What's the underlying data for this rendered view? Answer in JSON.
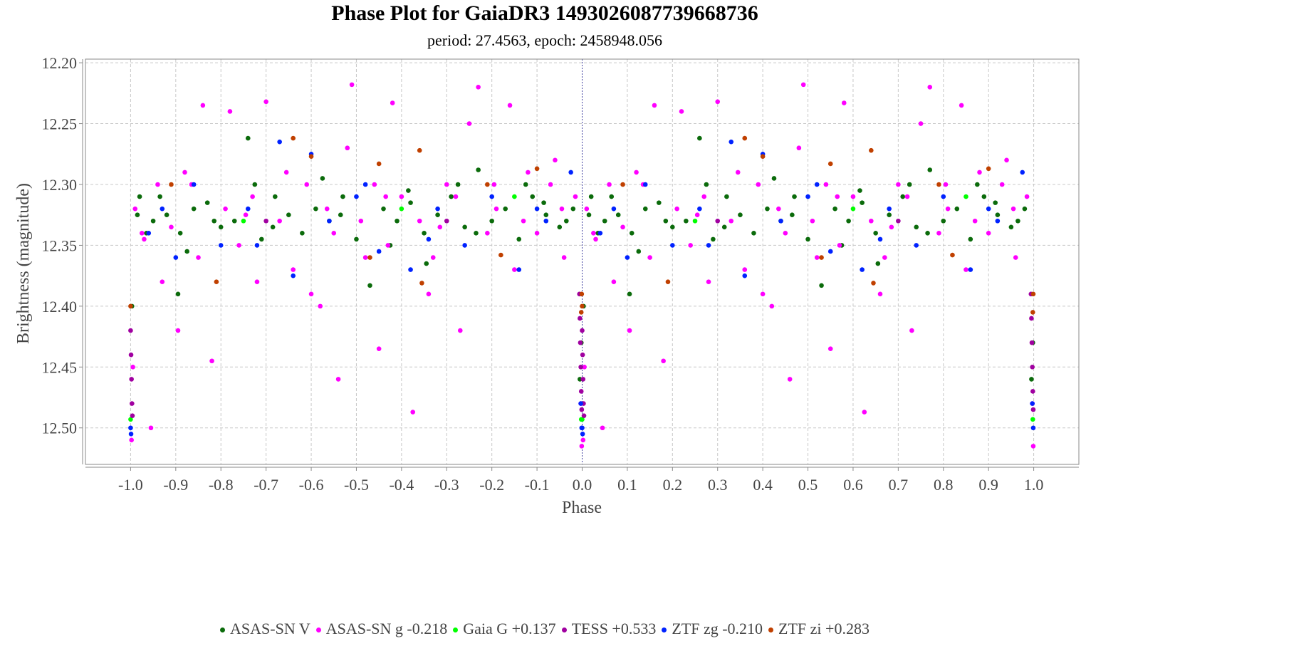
{
  "chart_data": {
    "type": "scatter",
    "title": "Phase Plot for GaiaDR3 1493026087739668736",
    "subtitle": "period: 27.4563, epoch: 2458948.056",
    "xlabel": "Phase",
    "ylabel": "Brightness (magnitude)",
    "xlim": [
      -1.1,
      1.1
    ],
    "ylim": [
      12.197,
      12.53
    ],
    "y_inverted": true,
    "grid": true,
    "legend_position": "bottom",
    "x_ticks": [
      "-1.0",
      "-0.9",
      "-0.8",
      "-0.7",
      "-0.6",
      "-0.5",
      "-0.4",
      "-0.3",
      "-0.2",
      "-0.1",
      "0.0",
      "0.1",
      "0.2",
      "0.3",
      "0.4",
      "0.5",
      "0.6",
      "0.7",
      "0.8",
      "0.9",
      "1.0"
    ],
    "y_ticks": [
      "12.20",
      "12.25",
      "12.30",
      "12.35",
      "12.40",
      "12.45",
      "12.50"
    ],
    "phase_folding": "each point at phase p in [0,1] is also drawn at p-1",
    "series": [
      {
        "name": "ASAS-SN V",
        "color": "#0b6b0b",
        "points": [
          [
            0.02,
            12.31
          ],
          [
            0.05,
            12.33
          ],
          [
            0.08,
            12.325
          ],
          [
            0.11,
            12.34
          ],
          [
            0.14,
            12.32
          ],
          [
            0.17,
            12.315
          ],
          [
            0.2,
            12.335
          ],
          [
            0.23,
            12.33
          ],
          [
            0.26,
            12.262
          ],
          [
            0.29,
            12.345
          ],
          [
            0.32,
            12.31
          ],
          [
            0.35,
            12.325
          ],
          [
            0.38,
            12.34
          ],
          [
            0.41,
            12.32
          ],
          [
            0.44,
            12.33
          ],
          [
            0.47,
            12.31
          ],
          [
            0.5,
            12.345
          ],
          [
            0.53,
            12.383
          ],
          [
            0.56,
            12.32
          ],
          [
            0.59,
            12.33
          ],
          [
            0.62,
            12.315
          ],
          [
            0.65,
            12.34
          ],
          [
            0.68,
            12.325
          ],
          [
            0.71,
            12.31
          ],
          [
            0.74,
            12.335
          ],
          [
            0.77,
            12.288
          ],
          [
            0.8,
            12.33
          ],
          [
            0.83,
            12.32
          ],
          [
            0.86,
            12.345
          ],
          [
            0.89,
            12.31
          ],
          [
            0.92,
            12.325
          ],
          [
            0.95,
            12.335
          ],
          [
            0.98,
            12.32
          ],
          [
            0.995,
            12.46
          ],
          [
            0.998,
            12.43
          ],
          [
            0.003,
            12.4
          ],
          [
            0.035,
            12.34
          ],
          [
            0.125,
            12.355
          ],
          [
            0.275,
            12.3
          ],
          [
            0.425,
            12.295
          ],
          [
            0.575,
            12.35
          ],
          [
            0.725,
            12.3
          ],
          [
            0.875,
            12.3
          ],
          [
            0.655,
            12.365
          ],
          [
            0.105,
            12.39
          ],
          [
            0.015,
            12.325
          ],
          [
            0.065,
            12.31
          ],
          [
            0.185,
            12.33
          ],
          [
            0.315,
            12.335
          ],
          [
            0.465,
            12.325
          ],
          [
            0.615,
            12.305
          ],
          [
            0.765,
            12.34
          ],
          [
            0.915,
            12.315
          ],
          [
            0.965,
            12.33
          ]
        ]
      },
      {
        "name": "ASAS-SN g -0.218",
        "color": "#ff00ff",
        "points": [
          [
            0.01,
            12.32
          ],
          [
            0.03,
            12.345
          ],
          [
            0.045,
            12.5
          ],
          [
            0.06,
            12.3
          ],
          [
            0.09,
            12.335
          ],
          [
            0.12,
            12.29
          ],
          [
            0.15,
            12.36
          ],
          [
            0.16,
            12.235
          ],
          [
            0.18,
            12.445
          ],
          [
            0.21,
            12.32
          ],
          [
            0.22,
            12.24
          ],
          [
            0.24,
            12.35
          ],
          [
            0.27,
            12.31
          ],
          [
            0.3,
            12.232
          ],
          [
            0.33,
            12.33
          ],
          [
            0.36,
            12.37
          ],
          [
            0.39,
            12.3
          ],
          [
            0.42,
            12.4
          ],
          [
            0.45,
            12.34
          ],
          [
            0.46,
            12.46
          ],
          [
            0.48,
            12.27
          ],
          [
            0.49,
            12.218
          ],
          [
            0.51,
            12.33
          ],
          [
            0.54,
            12.3
          ],
          [
            0.55,
            12.435
          ],
          [
            0.57,
            12.35
          ],
          [
            0.58,
            12.233
          ],
          [
            0.6,
            12.31
          ],
          [
            0.625,
            12.487
          ],
          [
            0.64,
            12.33
          ],
          [
            0.67,
            12.36
          ],
          [
            0.7,
            12.3
          ],
          [
            0.73,
            12.42
          ],
          [
            0.75,
            12.25
          ],
          [
            0.77,
            12.22
          ],
          [
            0.79,
            12.34
          ],
          [
            0.81,
            12.32
          ],
          [
            0.84,
            12.235
          ],
          [
            0.85,
            12.37
          ],
          [
            0.88,
            12.29
          ],
          [
            0.9,
            12.34
          ],
          [
            0.93,
            12.3
          ],
          [
            0.96,
            12.36
          ],
          [
            0.985,
            12.31
          ],
          [
            0.999,
            12.515
          ],
          [
            0.997,
            12.48
          ],
          [
            0.002,
            12.51
          ],
          [
            0.005,
            12.45
          ],
          [
            0.07,
            12.38
          ],
          [
            0.105,
            12.42
          ],
          [
            0.28,
            12.38
          ],
          [
            0.4,
            12.39
          ],
          [
            0.52,
            12.36
          ],
          [
            0.66,
            12.39
          ],
          [
            0.72,
            12.31
          ],
          [
            0.87,
            12.33
          ],
          [
            0.94,
            12.28
          ],
          [
            0.025,
            12.34
          ],
          [
            0.135,
            12.3
          ],
          [
            0.255,
            12.325
          ],
          [
            0.345,
            12.29
          ],
          [
            0.435,
            12.32
          ],
          [
            0.565,
            12.31
          ],
          [
            0.685,
            12.335
          ],
          [
            0.805,
            12.3
          ],
          [
            0.955,
            12.32
          ]
        ]
      },
      {
        "name": "Gaia G +0.137",
        "color": "#00ff00",
        "points": [
          [
            0.0,
            12.493
          ],
          [
            0.998,
            12.493
          ],
          [
            0.25,
            12.33
          ],
          [
            0.6,
            12.32
          ],
          [
            0.85,
            12.31
          ]
        ]
      },
      {
        "name": "TESS +0.533",
        "color": "#a000a0",
        "points": [
          [
            0.0,
            12.42
          ],
          [
            0.001,
            12.44
          ],
          [
            0.002,
            12.46
          ],
          [
            0.003,
            12.48
          ],
          [
            0.004,
            12.49
          ],
          [
            0.998,
            12.47
          ],
          [
            0.997,
            12.45
          ],
          [
            0.996,
            12.43
          ],
          [
            0.995,
            12.41
          ],
          [
            0.994,
            12.39
          ],
          [
            0.999,
            12.485
          ],
          [
            0.3,
            12.33
          ],
          [
            0.7,
            12.33
          ]
        ]
      },
      {
        "name": "ZTF zg -0.210",
        "color": "#0022ff",
        "points": [
          [
            0.0,
            12.5
          ],
          [
            0.001,
            12.505
          ],
          [
            0.997,
            12.48
          ],
          [
            0.999,
            12.5
          ],
          [
            0.04,
            12.34
          ],
          [
            0.1,
            12.36
          ],
          [
            0.14,
            12.3
          ],
          [
            0.2,
            12.35
          ],
          [
            0.26,
            12.32
          ],
          [
            0.33,
            12.265
          ],
          [
            0.36,
            12.375
          ],
          [
            0.4,
            12.275
          ],
          [
            0.44,
            12.33
          ],
          [
            0.5,
            12.31
          ],
          [
            0.55,
            12.355
          ],
          [
            0.62,
            12.37
          ],
          [
            0.68,
            12.32
          ],
          [
            0.74,
            12.35
          ],
          [
            0.8,
            12.31
          ],
          [
            0.86,
            12.37
          ],
          [
            0.92,
            12.33
          ],
          [
            0.975,
            12.29
          ],
          [
            0.07,
            12.32
          ],
          [
            0.28,
            12.35
          ],
          [
            0.52,
            12.3
          ],
          [
            0.66,
            12.345
          ],
          [
            0.9,
            12.32
          ]
        ]
      },
      {
        "name": "ZTF zi +0.283",
        "color": "#c04000",
        "points": [
          [
            0.0,
            12.4
          ],
          [
            0.999,
            12.39
          ],
          [
            0.998,
            12.405
          ],
          [
            0.09,
            12.3
          ],
          [
            0.19,
            12.38
          ],
          [
            0.36,
            12.262
          ],
          [
            0.4,
            12.277
          ],
          [
            0.53,
            12.36
          ],
          [
            0.55,
            12.283
          ],
          [
            0.64,
            12.272
          ],
          [
            0.645,
            12.381
          ],
          [
            0.79,
            12.3
          ],
          [
            0.9,
            12.287
          ],
          [
            0.82,
            12.358
          ]
        ]
      }
    ]
  }
}
